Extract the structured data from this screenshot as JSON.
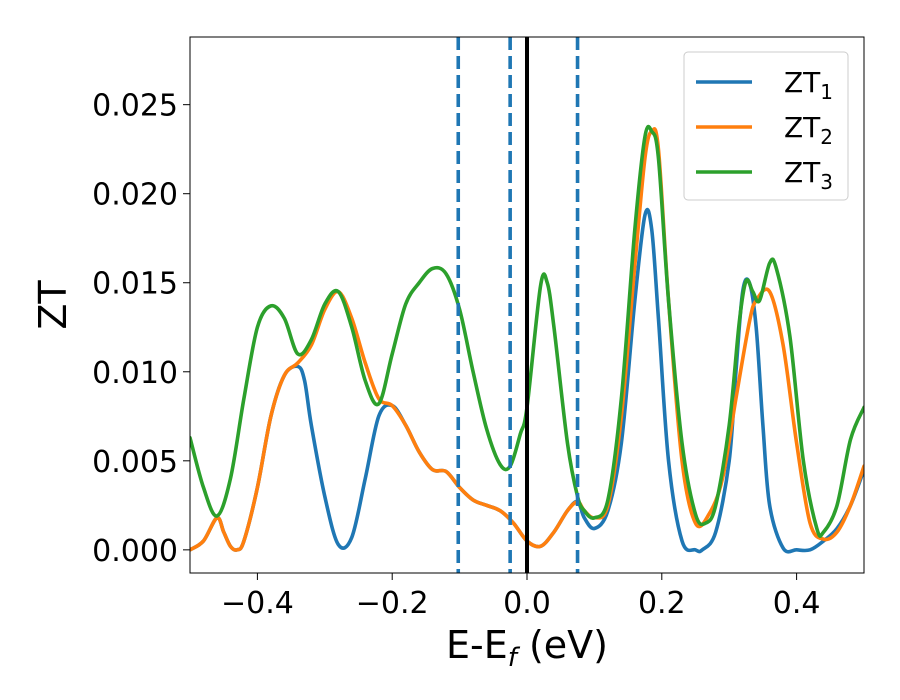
{
  "chart_data": {
    "type": "line",
    "title": "",
    "xlabel": "E-E",
    "xlabel_subscript": "f",
    "xlabel_unit": " (eV)",
    "ylabel": "ZT",
    "xlim": [
      -0.5,
      0.5
    ],
    "ylim": [
      -0.0013,
      0.0288
    ],
    "xticks": [
      -0.4,
      -0.2,
      0.0,
      0.2,
      0.4
    ],
    "xtick_labels": [
      "−0.4",
      "−0.2",
      "0.0",
      "0.2",
      "0.4"
    ],
    "yticks": [
      0.0,
      0.005,
      0.01,
      0.015,
      0.02,
      0.025
    ],
    "ytick_labels": [
      "0.000",
      "0.005",
      "0.010",
      "0.015",
      "0.020",
      "0.025"
    ],
    "grid": false,
    "legend": "top-right",
    "vlines": [
      {
        "x": -0.102,
        "style": "dashed",
        "color": "#1f77b4"
      },
      {
        "x": -0.025,
        "style": "dashed",
        "color": "#1f77b4"
      },
      {
        "x": 0.075,
        "style": "dashed",
        "color": "#1f77b4"
      },
      {
        "x": 0.0,
        "style": "solid",
        "color": "#000000"
      }
    ],
    "series": [
      {
        "name": "ZT",
        "subscript": "1",
        "color": "#1f77b4",
        "x": [
          -0.5,
          -0.48,
          -0.46,
          -0.45,
          -0.44,
          -0.43,
          -0.42,
          -0.4,
          -0.38,
          -0.36,
          -0.34,
          -0.33,
          -0.32,
          -0.3,
          -0.28,
          -0.26,
          -0.24,
          -0.22,
          -0.2,
          -0.18,
          -0.16,
          -0.14,
          -0.12,
          -0.1,
          -0.08,
          -0.06,
          -0.04,
          -0.02,
          0.0,
          0.02,
          0.04,
          0.06,
          0.075,
          0.085,
          0.1,
          0.12,
          0.14,
          0.16,
          0.175,
          0.185,
          0.195,
          0.21,
          0.23,
          0.25,
          0.26,
          0.28,
          0.3,
          0.31,
          0.32,
          0.33,
          0.34,
          0.35,
          0.36,
          0.38,
          0.4,
          0.42,
          0.44,
          0.46,
          0.48,
          0.5
        ],
        "y": [
          0.0,
          0.0005,
          0.0018,
          0.001,
          0.0002,
          0.0,
          0.0005,
          0.0035,
          0.0075,
          0.0098,
          0.0103,
          0.0095,
          0.007,
          0.003,
          0.0003,
          0.0007,
          0.004,
          0.0075,
          0.0081,
          0.007,
          0.0055,
          0.0045,
          0.0044,
          0.0035,
          0.0028,
          0.0025,
          0.0022,
          0.0015,
          0.0005,
          0.0002,
          0.001,
          0.0022,
          0.0027,
          0.0018,
          0.0012,
          0.0022,
          0.006,
          0.014,
          0.0188,
          0.018,
          0.013,
          0.005,
          0.0005,
          0.0,
          0.0,
          0.001,
          0.005,
          0.01,
          0.0145,
          0.015,
          0.0125,
          0.007,
          0.0025,
          0.0001,
          0.0,
          0.0,
          0.0005,
          0.0012,
          0.0025,
          0.0045
        ]
      },
      {
        "name": "ZT",
        "subscript": "2",
        "color": "#ff7f0e",
        "x": [
          -0.5,
          -0.48,
          -0.46,
          -0.45,
          -0.44,
          -0.43,
          -0.42,
          -0.4,
          -0.38,
          -0.36,
          -0.34,
          -0.32,
          -0.3,
          -0.28,
          -0.26,
          -0.24,
          -0.22,
          -0.2,
          -0.18,
          -0.16,
          -0.14,
          -0.12,
          -0.1,
          -0.08,
          -0.06,
          -0.04,
          -0.02,
          0.0,
          0.02,
          0.04,
          0.06,
          0.075,
          0.085,
          0.1,
          0.12,
          0.14,
          0.16,
          0.175,
          0.185,
          0.195,
          0.21,
          0.23,
          0.25,
          0.27,
          0.29,
          0.31,
          0.33,
          0.34,
          0.36,
          0.38,
          0.4,
          0.42,
          0.44,
          0.46,
          0.48,
          0.5
        ],
        "y": [
          0.0,
          0.0005,
          0.0018,
          0.001,
          0.0002,
          0.0,
          0.0005,
          0.0035,
          0.0075,
          0.0098,
          0.0105,
          0.0115,
          0.0135,
          0.0145,
          0.013,
          0.0105,
          0.0085,
          0.0081,
          0.007,
          0.0055,
          0.0045,
          0.0044,
          0.0035,
          0.0028,
          0.0025,
          0.0022,
          0.0015,
          0.0005,
          0.0002,
          0.001,
          0.0022,
          0.0027,
          0.0022,
          0.0018,
          0.0025,
          0.0075,
          0.016,
          0.022,
          0.0235,
          0.0225,
          0.014,
          0.005,
          0.0015,
          0.002,
          0.004,
          0.0085,
          0.0128,
          0.014,
          0.0145,
          0.0115,
          0.006,
          0.0015,
          0.0006,
          0.001,
          0.0025,
          0.0047
        ]
      },
      {
        "name": "ZT",
        "subscript": "3",
        "color": "#2ca02c",
        "x": [
          -0.5,
          -0.48,
          -0.46,
          -0.44,
          -0.42,
          -0.4,
          -0.38,
          -0.36,
          -0.34,
          -0.32,
          -0.3,
          -0.28,
          -0.26,
          -0.24,
          -0.22,
          -0.2,
          -0.18,
          -0.16,
          -0.14,
          -0.12,
          -0.1,
          -0.08,
          -0.06,
          -0.04,
          -0.025,
          -0.01,
          0.0,
          0.02,
          0.03,
          0.04,
          0.06,
          0.075,
          0.085,
          0.1,
          0.12,
          0.14,
          0.16,
          0.175,
          0.185,
          0.195,
          0.21,
          0.23,
          0.25,
          0.265,
          0.28,
          0.3,
          0.315,
          0.325,
          0.335,
          0.345,
          0.36,
          0.37,
          0.39,
          0.41,
          0.43,
          0.44,
          0.46,
          0.48,
          0.5
        ],
        "y": [
          0.0063,
          0.0035,
          0.0019,
          0.004,
          0.0085,
          0.0125,
          0.0137,
          0.013,
          0.011,
          0.0118,
          0.0138,
          0.0145,
          0.0125,
          0.0095,
          0.0082,
          0.011,
          0.0138,
          0.015,
          0.0158,
          0.0155,
          0.0135,
          0.01,
          0.0068,
          0.0048,
          0.0047,
          0.0065,
          0.008,
          0.0148,
          0.015,
          0.0125,
          0.006,
          0.003,
          0.0022,
          0.0018,
          0.0028,
          0.0085,
          0.018,
          0.0232,
          0.0235,
          0.022,
          0.014,
          0.006,
          0.002,
          0.0015,
          0.0025,
          0.007,
          0.0128,
          0.0151,
          0.0145,
          0.014,
          0.0161,
          0.0158,
          0.012,
          0.005,
          0.0012,
          0.001,
          0.0025,
          0.0062,
          0.008
        ]
      }
    ]
  }
}
